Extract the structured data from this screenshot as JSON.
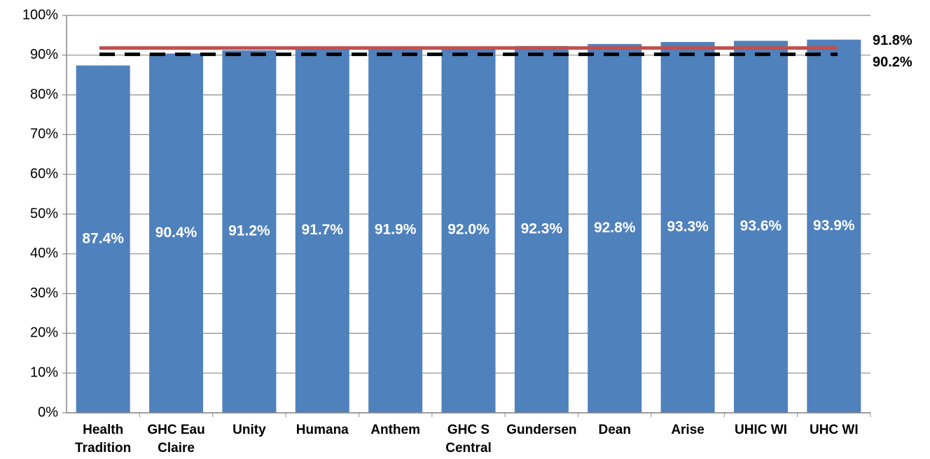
{
  "chart_data": {
    "type": "bar",
    "categories": [
      "Health\nTradition",
      "GHC Eau\nClaire",
      "Unity",
      "Humana",
      "Anthem",
      "GHC S\nCentral",
      "Gundersen",
      "Dean",
      "Arise",
      "UHIC WI",
      "UHC WI"
    ],
    "values": [
      87.4,
      90.4,
      91.2,
      91.7,
      91.9,
      92.0,
      92.3,
      92.8,
      93.3,
      93.6,
      93.9
    ],
    "value_labels": [
      "87.4%",
      "90.4%",
      "91.2%",
      "91.7%",
      "91.9%",
      "92.0%",
      "92.3%",
      "92.8%",
      "93.3%",
      "93.6%",
      "93.9%"
    ],
    "color": "#4f81bd",
    "ylim": [
      0,
      100
    ],
    "yticks": [
      {
        "value": 0,
        "label": "0%"
      },
      {
        "value": 10,
        "label": "10%"
      },
      {
        "value": 20,
        "label": "20%"
      },
      {
        "value": 30,
        "label": "30%"
      },
      {
        "value": 40,
        "label": "40%"
      },
      {
        "value": 50,
        "label": "50%"
      },
      {
        "value": 60,
        "label": "60%"
      },
      {
        "value": 70,
        "label": "70%"
      },
      {
        "value": 80,
        "label": "80%"
      },
      {
        "value": 90,
        "label": "90%"
      },
      {
        "value": 100,
        "label": "100%"
      }
    ],
    "grid": true,
    "reference_lines": [
      {
        "value": 91.8,
        "label": "91.8%",
        "color": "#c0504d",
        "style": "solid"
      },
      {
        "value": 90.2,
        "label": "90.2%",
        "color": "#000000",
        "style": "dashed"
      }
    ]
  }
}
